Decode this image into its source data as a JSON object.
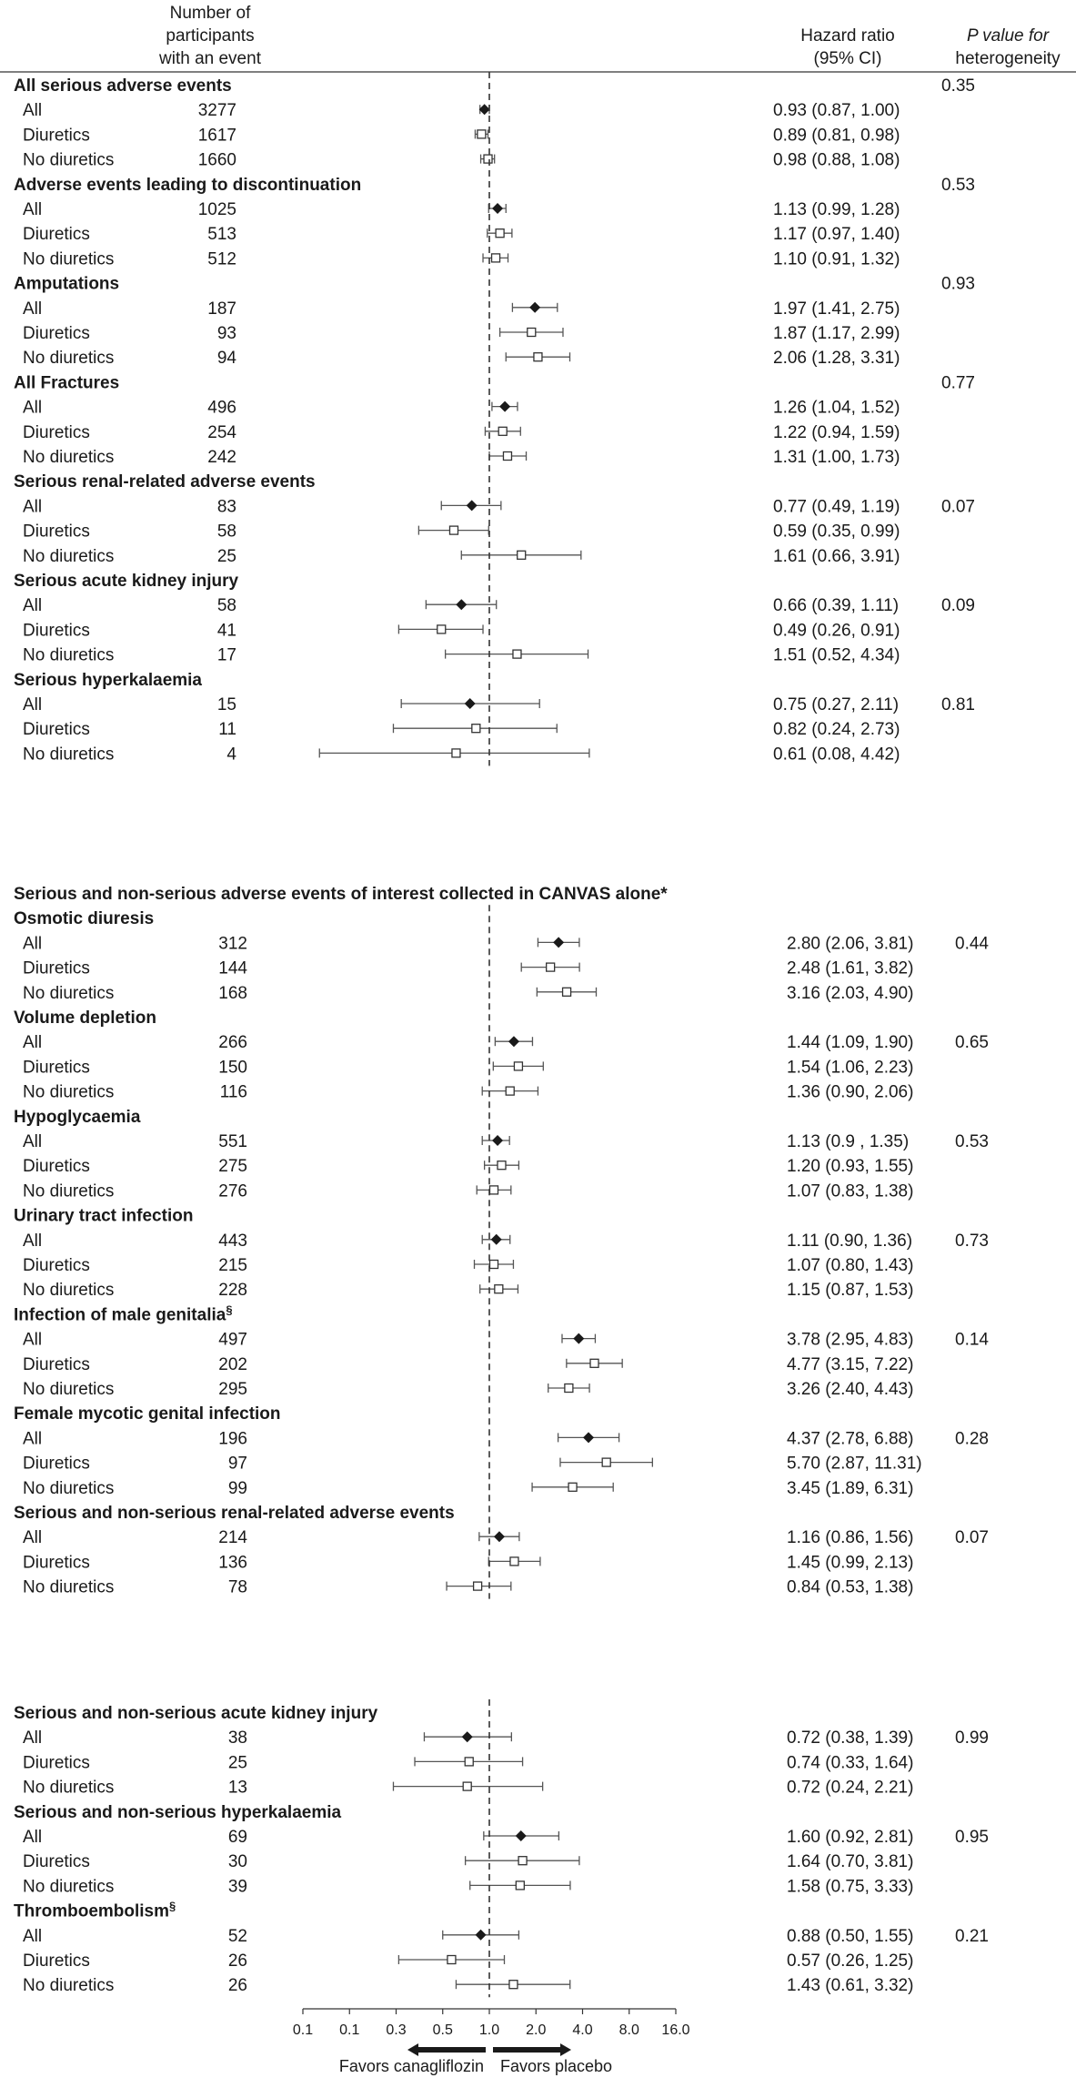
{
  "header": {
    "participants": [
      "Number of",
      "participants",
      "with an event"
    ],
    "hr": [
      "Hazard ratio",
      "(95% CI)"
    ],
    "pval": [
      "P value for",
      "heterogeneity"
    ]
  },
  "chart_data": {
    "type": "forest",
    "x_scale": "log2",
    "xlim": [
      0.0625,
      16
    ],
    "reference_line": 1.0,
    "x_tick_labels": [
      "0.1",
      "0.1",
      "0.3",
      "0.5",
      "1.0",
      "2.0",
      "4.0",
      "8.0",
      "16.0"
    ],
    "favors_left": "Favors canagliflozin",
    "favors_right": "Favors placebo",
    "panels": [
      {
        "title": "",
        "groups": [
          {
            "title": "All serious adverse events",
            "p": "0.35",
            "p_row": "header",
            "rows": [
              {
                "label": "All",
                "n": "3277",
                "hr": 0.93,
                "lo": 0.87,
                "hi": 1.0,
                "ci": "0.93 (0.87, 1.00)"
              },
              {
                "label": "Diuretics",
                "n": "1617",
                "hr": 0.89,
                "lo": 0.81,
                "hi": 0.98,
                "ci": "0.89 (0.81, 0.98)"
              },
              {
                "label": "No diuretics",
                "n": "1660",
                "hr": 0.98,
                "lo": 0.88,
                "hi": 1.08,
                "ci": "0.98 (0.88, 1.08)"
              }
            ]
          },
          {
            "title": "Adverse events leading to discontinuation",
            "p": "0.53",
            "p_row": "header",
            "rows": [
              {
                "label": "All",
                "n": "1025",
                "hr": 1.13,
                "lo": 0.99,
                "hi": 1.28,
                "ci": "1.13 (0.99, 1.28)"
              },
              {
                "label": "Diuretics",
                "n": "513",
                "hr": 1.17,
                "lo": 0.97,
                "hi": 1.4,
                "ci": "1.17 (0.97, 1.40)"
              },
              {
                "label": "No diuretics",
                "n": "512",
                "hr": 1.1,
                "lo": 0.91,
                "hi": 1.32,
                "ci": "1.10 (0.91, 1.32)"
              }
            ]
          },
          {
            "title": "Amputations",
            "p": "0.93",
            "p_row": "header",
            "rows": [
              {
                "label": "All",
                "n": "187",
                "hr": 1.97,
                "lo": 1.41,
                "hi": 2.75,
                "ci": "1.97 (1.41, 2.75)"
              },
              {
                "label": "Diuretics",
                "n": "93",
                "hr": 1.87,
                "lo": 1.17,
                "hi": 2.99,
                "ci": "1.87 (1.17, 2.99)"
              },
              {
                "label": "No diuretics",
                "n": "94",
                "hr": 2.06,
                "lo": 1.28,
                "hi": 3.31,
                "ci": "2.06 (1.28, 3.31)"
              }
            ]
          },
          {
            "title": "All Fractures",
            "p": "0.77",
            "p_row": "header",
            "rows": [
              {
                "label": "All",
                "n": "496",
                "hr": 1.26,
                "lo": 1.04,
                "hi": 1.52,
                "ci": "1.26 (1.04, 1.52)"
              },
              {
                "label": "Diuretics",
                "n": "254",
                "hr": 1.22,
                "lo": 0.94,
                "hi": 1.59,
                "ci": "1.22 (0.94, 1.59)"
              },
              {
                "label": "No diuretics",
                "n": "242",
                "hr": 1.31,
                "lo": 1.0,
                "hi": 1.73,
                "ci": "1.31 (1.00, 1.73)"
              }
            ]
          },
          {
            "title": "Serious renal-related adverse events",
            "p": "0.07",
            "p_row": "first",
            "rows": [
              {
                "label": "All",
                "n": "83",
                "hr": 0.77,
                "lo": 0.49,
                "hi": 1.19,
                "ci": "0.77 (0.49, 1.19)"
              },
              {
                "label": "Diuretics",
                "n": "58",
                "hr": 0.59,
                "lo": 0.35,
                "hi": 0.99,
                "ci": "0.59 (0.35, 0.99)"
              },
              {
                "label": "No diuretics",
                "n": "25",
                "hr": 1.61,
                "lo": 0.66,
                "hi": 3.91,
                "ci": "1.61 (0.66, 3.91)"
              }
            ]
          },
          {
            "title": "Serious acute kidney injury",
            "p": "0.09",
            "p_row": "first",
            "rows": [
              {
                "label": "All",
                "n": "58",
                "hr": 0.66,
                "lo": 0.39,
                "hi": 1.11,
                "ci": "0.66 (0.39, 1.11)"
              },
              {
                "label": "Diuretics",
                "n": "41",
                "hr": 0.49,
                "lo": 0.26,
                "hi": 0.91,
                "ci": "0.49 (0.26, 0.91)"
              },
              {
                "label": "No diuretics",
                "n": "17",
                "hr": 1.51,
                "lo": 0.52,
                "hi": 4.34,
                "ci": "1.51 (0.52, 4.34)"
              }
            ]
          },
          {
            "title": "Serious hyperkalaemia",
            "p": "0.81",
            "p_row": "first",
            "rows": [
              {
                "label": "All",
                "n": "15",
                "hr": 0.75,
                "lo": 0.27,
                "hi": 2.11,
                "ci": "0.75 (0.27, 2.11)"
              },
              {
                "label": "Diuretics",
                "n": "11",
                "hr": 0.82,
                "lo": 0.24,
                "hi": 2.73,
                "ci": "0.82 (0.24, 2.73)"
              },
              {
                "label": "No diuretics",
                "n": "4",
                "hr": 0.61,
                "lo": 0.08,
                "hi": 4.42,
                "ci": "0.61 (0.08, 4.42)"
              }
            ]
          }
        ]
      },
      {
        "title": "Serious and non-serious adverse events of interest collected in CANVAS alone*",
        "groups": [
          {
            "title": "Osmotic diuresis",
            "p": "0.44",
            "p_row": "first",
            "rows": [
              {
                "label": "All",
                "n": "312",
                "hr": 2.8,
                "lo": 2.06,
                "hi": 3.81,
                "ci": "2.80 (2.06, 3.81)"
              },
              {
                "label": "Diuretics",
                "n": "144",
                "hr": 2.48,
                "lo": 1.61,
                "hi": 3.82,
                "ci": "2.48 (1.61, 3.82)"
              },
              {
                "label": "No diuretics",
                "n": "168",
                "hr": 3.16,
                "lo": 2.03,
                "hi": 4.9,
                "ci": "3.16 (2.03, 4.90)"
              }
            ]
          },
          {
            "title": "Volume depletion",
            "p": "0.65",
            "p_row": "first",
            "rows": [
              {
                "label": "All",
                "n": "266",
                "hr": 1.44,
                "lo": 1.09,
                "hi": 1.9,
                "ci": "1.44 (1.09, 1.90)"
              },
              {
                "label": "Diuretics",
                "n": "150",
                "hr": 1.54,
                "lo": 1.06,
                "hi": 2.23,
                "ci": "1.54 (1.06, 2.23)"
              },
              {
                "label": "No diuretics",
                "n": "116",
                "hr": 1.36,
                "lo": 0.9,
                "hi": 2.06,
                "ci": "1.36 (0.90, 2.06)"
              }
            ]
          },
          {
            "title": "Hypoglycaemia",
            "p": "0.53",
            "p_row": "first",
            "rows": [
              {
                "label": "All",
                "n": "551",
                "hr": 1.13,
                "lo": 0.9,
                "hi": 1.35,
                "ci": "1.13 (0.9 , 1.35)"
              },
              {
                "label": "Diuretics",
                "n": "275",
                "hr": 1.2,
                "lo": 0.93,
                "hi": 1.55,
                "ci": "1.20 (0.93, 1.55)"
              },
              {
                "label": "No diuretics",
                "n": "276",
                "hr": 1.07,
                "lo": 0.83,
                "hi": 1.38,
                "ci": "1.07 (0.83, 1.38)"
              }
            ]
          },
          {
            "title": "Urinary tract infection",
            "p": "0.73",
            "p_row": "first",
            "rows": [
              {
                "label": "All",
                "n": "443",
                "hr": 1.11,
                "lo": 0.9,
                "hi": 1.36,
                "ci": "1.11 (0.90, 1.36)"
              },
              {
                "label": "Diuretics",
                "n": "215",
                "hr": 1.07,
                "lo": 0.8,
                "hi": 1.43,
                "ci": "1.07 (0.80, 1.43)"
              },
              {
                "label": "No diuretics",
                "n": "228",
                "hr": 1.15,
                "lo": 0.87,
                "hi": 1.53,
                "ci": "1.15 (0.87, 1.53)"
              }
            ]
          },
          {
            "title": "Infection of male genitalia",
            "sup": "§",
            "p": "0.14",
            "p_row": "first",
            "rows": [
              {
                "label": "All",
                "n": "497",
                "hr": 3.78,
                "lo": 2.95,
                "hi": 4.83,
                "ci": "3.78 (2.95, 4.83)"
              },
              {
                "label": "Diuretics",
                "n": "202",
                "hr": 4.77,
                "lo": 3.15,
                "hi": 7.22,
                "ci": "4.77 (3.15, 7.22)"
              },
              {
                "label": "No diuretics",
                "n": "295",
                "hr": 3.26,
                "lo": 2.4,
                "hi": 4.43,
                "ci": "3.26 (2.40, 4.43)"
              }
            ]
          },
          {
            "title": "Female mycotic genital infection",
            "p": "0.28",
            "p_row": "first",
            "rows": [
              {
                "label": "All",
                "n": "196",
                "hr": 4.37,
                "lo": 2.78,
                "hi": 6.88,
                "ci": "4.37 (2.78, 6.88)"
              },
              {
                "label": "Diuretics",
                "n": "97",
                "hr": 5.7,
                "lo": 2.87,
                "hi": 11.31,
                "ci": "5.70 (2.87, 11.31)"
              },
              {
                "label": "No diuretics",
                "n": "99",
                "hr": 3.45,
                "lo": 1.89,
                "hi": 6.31,
                "ci": "3.45 (1.89, 6.31)"
              }
            ]
          },
          {
            "title": "Serious and non-serious renal-related adverse events",
            "p": "0.07",
            "p_row": "first",
            "rows": [
              {
                "label": "All",
                "n": "214",
                "hr": 1.16,
                "lo": 0.86,
                "hi": 1.56,
                "ci": "1.16 (0.86, 1.56)"
              },
              {
                "label": "Diuretics",
                "n": "136",
                "hr": 1.45,
                "lo": 0.99,
                "hi": 2.13,
                "ci": "1.45 (0.99, 2.13)"
              },
              {
                "label": "No diuretics",
                "n": "78",
                "hr": 0.84,
                "lo": 0.53,
                "hi": 1.38,
                "ci": "0.84 (0.53, 1.38)"
              }
            ]
          }
        ]
      },
      {
        "title": "",
        "groups": [
          {
            "title": "Serious and non-serious acute kidney injury",
            "p": "0.99",
            "p_row": "first",
            "rows": [
              {
                "label": "All",
                "n": "38",
                "hr": 0.72,
                "lo": 0.38,
                "hi": 1.39,
                "ci": "0.72 (0.38, 1.39)"
              },
              {
                "label": "Diuretics",
                "n": "25",
                "hr": 0.74,
                "lo": 0.33,
                "hi": 1.64,
                "ci": "0.74 (0.33, 1.64)"
              },
              {
                "label": "No diuretics",
                "n": "13",
                "hr": 0.72,
                "lo": 0.24,
                "hi": 2.21,
                "ci": "0.72 (0.24, 2.21)"
              }
            ]
          },
          {
            "title": "Serious and non-serious hyperkalaemia",
            "p": "0.95",
            "p_row": "first",
            "rows": [
              {
                "label": "All",
                "n": "69",
                "hr": 1.6,
                "lo": 0.92,
                "hi": 2.81,
                "ci": "1.60 (0.92, 2.81)"
              },
              {
                "label": "Diuretics",
                "n": "30",
                "hr": 1.64,
                "lo": 0.7,
                "hi": 3.81,
                "ci": "1.64 (0.70, 3.81)"
              },
              {
                "label": "No diuretics",
                "n": "39",
                "hr": 1.58,
                "lo": 0.75,
                "hi": 3.33,
                "ci": "1.58 (0.75, 3.33)"
              }
            ]
          },
          {
            "title": "Thromboembolism",
            "sup": "§",
            "p": "0.21",
            "p_row": "first",
            "rows": [
              {
                "label": "All",
                "n": "52",
                "hr": 0.88,
                "lo": 0.5,
                "hi": 1.55,
                "ci": "0.88 (0.50, 1.55)"
              },
              {
                "label": "Diuretics",
                "n": "26",
                "hr": 0.57,
                "lo": 0.26,
                "hi": 1.25,
                "ci": "0.57 (0.26, 1.25)"
              },
              {
                "label": "No diuretics",
                "n": "26",
                "hr": 1.43,
                "lo": 0.61,
                "hi": 3.32,
                "ci": "1.43 (0.61, 3.32)"
              }
            ]
          }
        ]
      }
    ]
  }
}
